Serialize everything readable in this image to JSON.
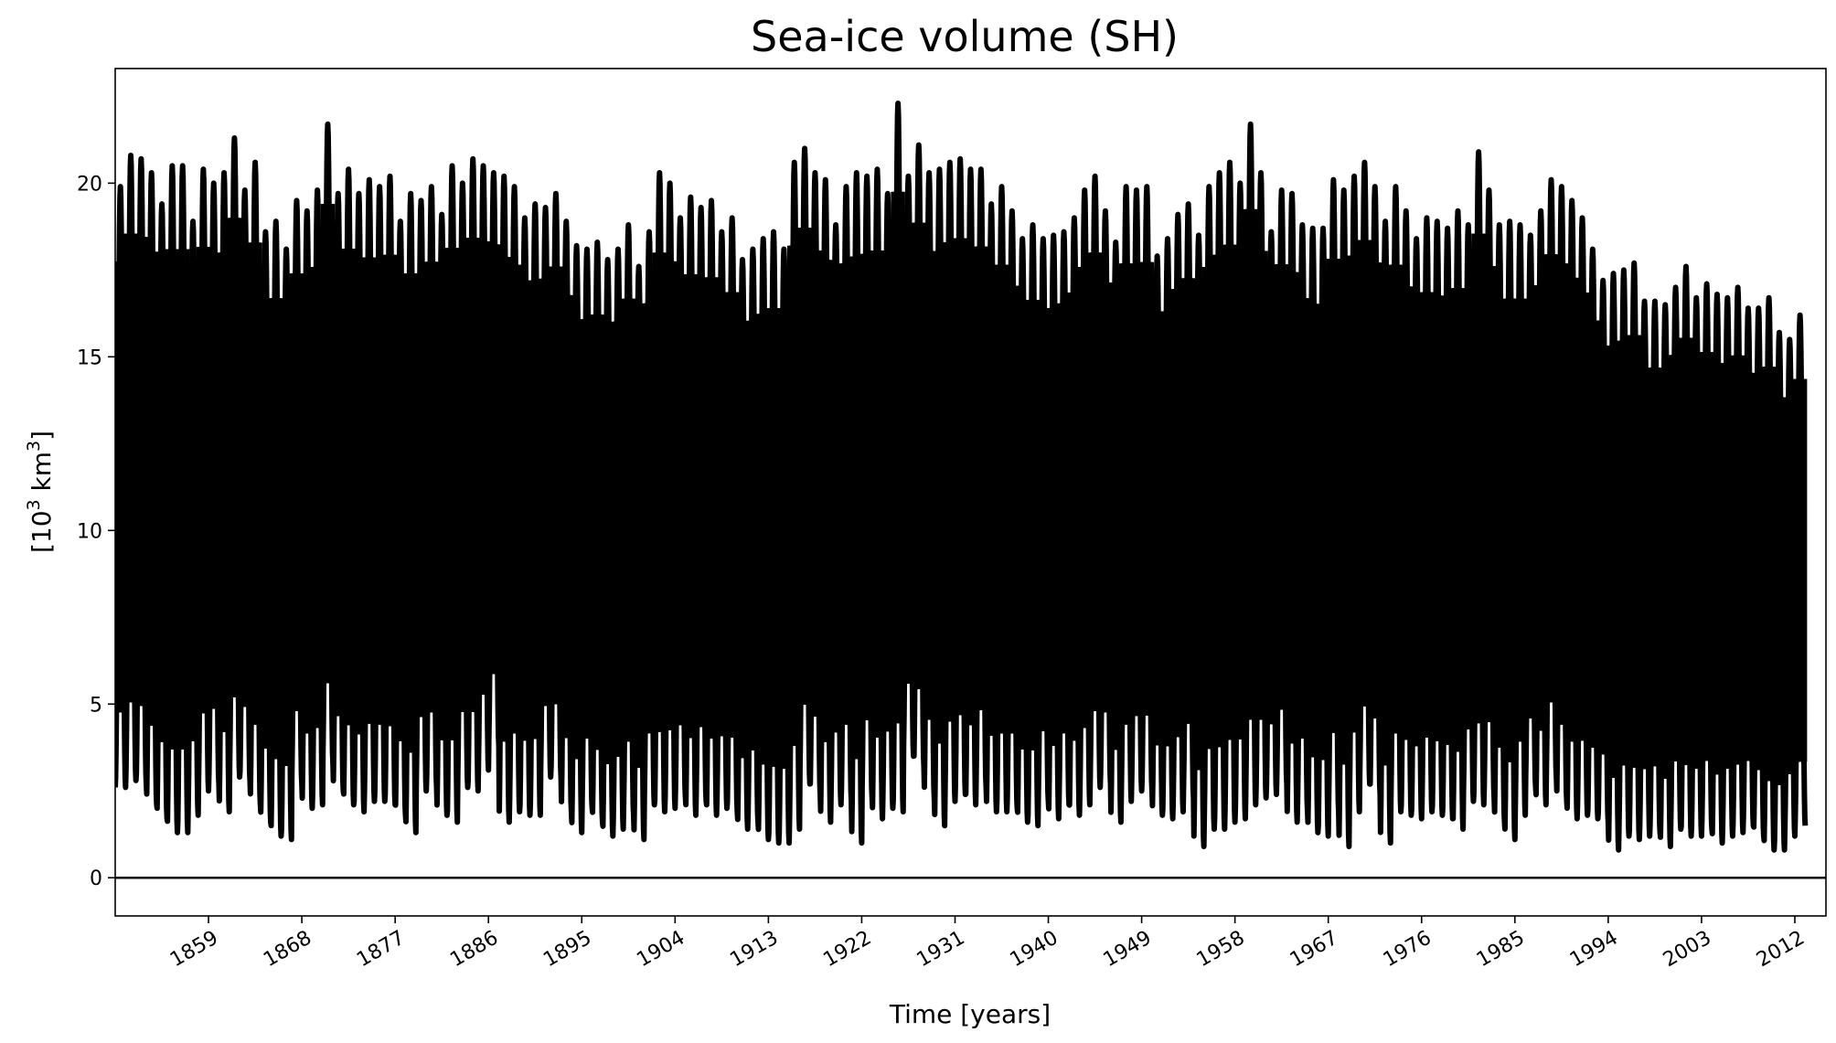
{
  "chart_data": {
    "type": "line",
    "title": "Sea-ice volume (SH)",
    "xlabel": "Time [years]",
    "ylabel_base": "[10",
    "ylabel_exp1": "3",
    "ylabel_mid": " km",
    "ylabel_exp2": "3",
    "ylabel_end": "]",
    "xlim": [
      1850,
      2015
    ],
    "ylim": [
      -1.1,
      23.3
    ],
    "yticks": [
      0,
      5,
      10,
      15,
      20
    ],
    "xticks": [
      1859,
      1868,
      1877,
      1886,
      1895,
      1904,
      1913,
      1922,
      1931,
      1940,
      1949,
      1958,
      1967,
      1976,
      1985,
      1994,
      2003,
      2012
    ],
    "reference_line_y": 0,
    "line_color": "#000000",
    "grid": false,
    "legend": "none",
    "series": [
      {
        "x": [
          1850,
          1851,
          1852,
          1853,
          1854,
          1855,
          1856,
          1857,
          1858,
          1859,
          1860,
          1861,
          1862,
          1863,
          1864,
          1865,
          1866,
          1867,
          1868,
          1869,
          1870,
          1871,
          1872,
          1873,
          1874,
          1875,
          1876,
          1877,
          1878,
          1879,
          1880,
          1881,
          1882,
          1883,
          1884,
          1885,
          1886,
          1887,
          1888,
          1889,
          1890,
          1891,
          1892,
          1893,
          1894,
          1895,
          1896,
          1897,
          1898,
          1899,
          1900,
          1901,
          1902,
          1903,
          1904,
          1905,
          1906,
          1907,
          1908,
          1909,
          1910,
          1911,
          1912,
          1913,
          1914,
          1915,
          1916,
          1917,
          1918,
          1919,
          1920,
          1921,
          1922,
          1923,
          1924,
          1925,
          1926,
          1927,
          1928,
          1929,
          1930,
          1931,
          1932,
          1933,
          1934,
          1935,
          1936,
          1937,
          1938,
          1939,
          1940,
          1941,
          1942,
          1943,
          1944,
          1945,
          1946,
          1947,
          1948,
          1949,
          1950,
          1951,
          1952,
          1953,
          1954,
          1955,
          1956,
          1957,
          1958,
          1959,
          1960,
          1961,
          1962,
          1963,
          1964,
          1965,
          1966,
          1967,
          1968,
          1969,
          1970,
          1971,
          1972,
          1973,
          1974,
          1975,
          1976,
          1977,
          1978,
          1979,
          1980,
          1981,
          1982,
          1983,
          1984,
          1985,
          1986,
          1987,
          1988,
          1989,
          1990,
          1991,
          1992,
          1993,
          1994,
          1995,
          1996,
          1997,
          1998,
          1999,
          2000,
          2001,
          2002,
          2003,
          2004,
          2005,
          2006,
          2007,
          2008,
          2009,
          2010,
          2011,
          2012,
          2013,
          2014
        ],
        "max": [
          19.9,
          20.8,
          20.7,
          20.3,
          19.4,
          20.5,
          20.5,
          18.9,
          20.4,
          20.0,
          20.3,
          21.3,
          19.8,
          20.6,
          18.6,
          18.9,
          18.1,
          19.5,
          19.2,
          19.8,
          21.7,
          19.7,
          20.4,
          19.7,
          20.1,
          19.9,
          20.2,
          18.9,
          19.7,
          19.5,
          19.9,
          19.1,
          20.5,
          20.0,
          20.7,
          20.5,
          20.3,
          20.2,
          19.9,
          19.0,
          19.4,
          19.3,
          19.7,
          18.9,
          18.2,
          18.1,
          18.3,
          17.8,
          18.1,
          18.8,
          17.6,
          18.6,
          20.3,
          20.0,
          19.0,
          19.6,
          19.3,
          19.5,
          18.6,
          19.0,
          17.8,
          18.1,
          18.4,
          18.6,
          18.1,
          20.6,
          21.0,
          20.3,
          20.1,
          18.8,
          19.9,
          20.3,
          20.2,
          20.4,
          19.7,
          22.3,
          20.2,
          21.1,
          20.3,
          20.4,
          20.6,
          20.7,
          20.4,
          20.4,
          19.4,
          19.9,
          19.2,
          18.4,
          18.8,
          18.4,
          18.5,
          18.6,
          19.0,
          19.8,
          20.2,
          19.2,
          18.3,
          19.9,
          19.8,
          19.9,
          17.9,
          18.4,
          19.1,
          19.4,
          18.5,
          19.9,
          20.3,
          20.6,
          20.0,
          21.7,
          20.3,
          18.6,
          19.8,
          19.7,
          18.8,
          18.7,
          18.7,
          20.1,
          19.8,
          20.2,
          20.6,
          19.9,
          18.9,
          19.9,
          19.2,
          18.4,
          19.0,
          18.9,
          18.7,
          19.2,
          18.8,
          20.9,
          19.8,
          18.8,
          18.9,
          18.8,
          18.5,
          19.2,
          20.1,
          19.9,
          19.5,
          19.0,
          18.1,
          17.2,
          17.4,
          17.5,
          17.7,
          16.6,
          16.6,
          16.5,
          17.0,
          17.6,
          16.7,
          17.1,
          16.8,
          16.7,
          17.0,
          16.4,
          16.4,
          16.7,
          15.7,
          15.5,
          16.2,
          16.7
        ],
        "min": [
          2.6,
          2.8,
          2.7,
          2.1,
          1.7,
          1.3,
          1.3,
          1.8,
          2.5,
          2.7,
          1.9,
          2.9,
          2.8,
          2.1,
          1.6,
          1.2,
          1.1,
          2.7,
          2.0,
          2.1,
          3.3,
          2.5,
          2.1,
          1.9,
          2.2,
          2.2,
          2.1,
          1.8,
          1.3,
          2.5,
          2.6,
          1.8,
          1.6,
          2.6,
          2.5,
          3.1,
          3.8,
          1.6,
          1.9,
          1.8,
          1.8,
          2.9,
          2.9,
          1.9,
          1.3,
          2.0,
          1.6,
          1.2,
          1.4,
          1.8,
          1.1,
          2.1,
          1.9,
          2.0,
          2.3,
          1.8,
          2.2,
          1.8,
          2.0,
          1.9,
          1.4,
          1.6,
          1.1,
          1.0,
          1.0,
          1.4,
          2.7,
          2.4,
          1.6,
          2.1,
          2.2,
          1.0,
          2.3,
          1.7,
          2.0,
          1.9,
          3.5,
          3.2,
          2.3,
          1.5,
          2.2,
          2.4,
          2.1,
          2.6,
          1.9,
          1.9,
          2.0,
          1.6,
          1.5,
          2.2,
          1.7,
          2.1,
          1.8,
          2.1,
          2.6,
          2.7,
          1.6,
          2.2,
          2.5,
          2.5,
          1.8,
          1.7,
          1.9,
          2.3,
          0.9,
          1.4,
          1.4,
          1.6,
          1.7,
          2.1,
          2.3,
          2.4,
          2.7,
          1.6,
          1.9,
          1.3,
          1.2,
          1.9,
          0.9,
          1.9,
          2.7,
          2.4,
          1.0,
          1.9,
          1.8,
          1.7,
          1.9,
          1.8,
          1.7,
          1.4,
          2.2,
          2.1,
          2.3,
          1.6,
          1.1,
          1.8,
          2.6,
          2.1,
          2.9,
          2.2,
          1.7,
          1.8,
          1.7,
          1.6,
          0.8,
          1.2,
          1.1,
          1.2,
          1.3,
          0.9,
          1.4,
          1.2,
          1.2,
          1.4,
          1.0,
          1.2,
          1.3,
          1.5,
          1.2,
          0.8,
          0.8,
          1.2,
          1.5
        ]
      }
    ]
  }
}
